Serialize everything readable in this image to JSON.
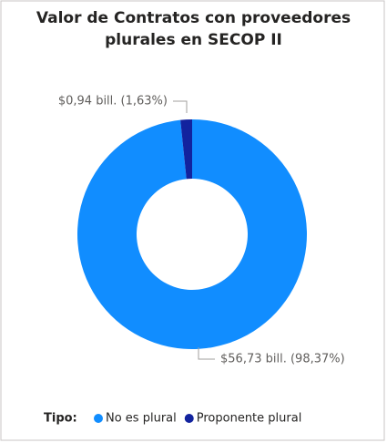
{
  "chart_data": {
    "type": "donut",
    "title": "Valor de Contratos con proveedores plurales en SECOP II",
    "legend_title": "Tipo:",
    "categories": [
      "No es plural",
      "Proponente plural"
    ],
    "values": [
      56.73,
      0.94
    ],
    "value_labels": [
      "$56,73 bill. (98,37%)",
      "$0,94 bill. (1,63%)"
    ],
    "colors": [
      "#118dff",
      "#12239e"
    ],
    "legend": "bottom"
  }
}
